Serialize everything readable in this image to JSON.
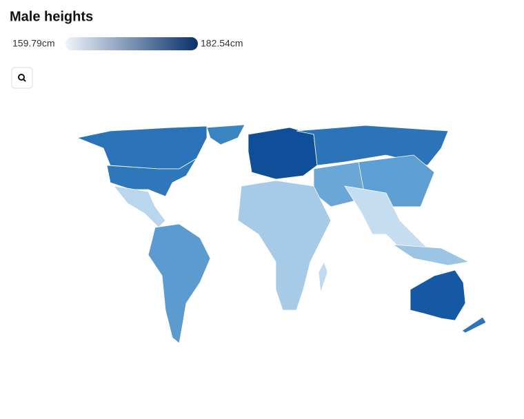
{
  "title": "Male heights",
  "legend": {
    "min": {
      "value": 159.79,
      "label": "159.79cm"
    },
    "max": {
      "value": 182.54,
      "label": "182.54cm"
    },
    "colors": [
      "#eef4fb",
      "#08306b"
    ]
  }
}
